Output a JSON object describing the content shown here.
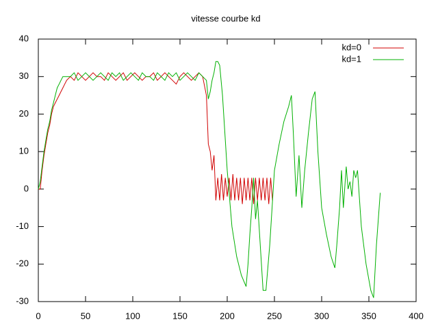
{
  "chart_data": {
    "type": "line",
    "title": "vitesse courbe kd",
    "xlim": [
      0,
      400
    ],
    "xticks": [
      0,
      50,
      100,
      150,
      200,
      250,
      300,
      350,
      400
    ],
    "ylim": [
      -30,
      40
    ],
    "yticks": [
      -30,
      -20,
      -10,
      0,
      10,
      20,
      30,
      40
    ],
    "grid": false,
    "legend": "top-right",
    "series": [
      {
        "name": "kd=0",
        "color": "#d00000",
        "x": [
          0,
          2,
          4,
          6,
          8,
          10,
          12,
          14,
          16,
          18,
          20,
          22,
          24,
          26,
          28,
          30,
          34,
          38,
          42,
          46,
          50,
          54,
          58,
          62,
          66,
          70,
          74,
          78,
          82,
          86,
          90,
          94,
          98,
          102,
          106,
          110,
          114,
          118,
          122,
          126,
          130,
          134,
          138,
          142,
          146,
          150,
          154,
          158,
          162,
          166,
          170,
          174,
          178,
          180,
          182,
          184,
          186,
          188,
          190,
          192,
          194,
          196,
          198,
          200,
          202,
          204,
          206,
          208,
          210,
          212,
          214,
          216,
          218,
          220,
          222,
          224,
          226,
          228,
          230,
          232,
          234,
          236,
          238,
          240,
          242,
          244,
          246,
          248
        ],
        "values": [
          0,
          0,
          5,
          9,
          12,
          15,
          17,
          20,
          22,
          23,
          24,
          25,
          26,
          27,
          28,
          29,
          30,
          29,
          31,
          30,
          29,
          30,
          31,
          30,
          30,
          29,
          31,
          30,
          29,
          30,
          31,
          29,
          30,
          31,
          30,
          29,
          30,
          30,
          31,
          29,
          30,
          31,
          30,
          29,
          28,
          30,
          31,
          30,
          29,
          30,
          31,
          30,
          25,
          12,
          10,
          5,
          9,
          -3,
          3,
          -3,
          4,
          -3,
          3,
          -2,
          3,
          -3,
          4,
          -3,
          3,
          -3,
          3,
          -4,
          3,
          -3,
          3,
          -3,
          3,
          -4,
          3,
          -3,
          3,
          -3,
          3,
          -3,
          3,
          -4,
          3,
          -3
        ]
      },
      {
        "name": "kd=1",
        "color": "#00b000",
        "x": [
          0,
          2,
          4,
          6,
          8,
          10,
          12,
          14,
          16,
          18,
          20,
          22,
          24,
          26,
          28,
          30,
          34,
          38,
          42,
          46,
          50,
          54,
          58,
          62,
          66,
          70,
          74,
          78,
          82,
          86,
          90,
          94,
          98,
          102,
          106,
          110,
          114,
          118,
          122,
          126,
          130,
          134,
          138,
          142,
          146,
          150,
          154,
          158,
          162,
          166,
          170,
          174,
          178,
          180,
          182,
          184,
          186,
          188,
          190,
          192,
          195,
          200,
          205,
          210,
          215,
          220,
          222,
          224,
          226,
          228,
          230,
          232,
          235,
          238,
          241,
          245,
          250,
          255,
          260,
          265,
          268,
          270,
          273,
          276,
          279,
          282,
          286,
          290,
          293,
          296,
          300,
          305,
          310,
          314,
          316,
          319,
          321,
          323,
          326,
          328,
          330,
          332,
          334,
          336,
          338,
          342,
          347,
          352,
          355,
          358,
          362
        ],
        "values": [
          0,
          2,
          6,
          10,
          13,
          16,
          18,
          21,
          23,
          25,
          27,
          28,
          29,
          30,
          30,
          30,
          30,
          31,
          29,
          30,
          31,
          30,
          29,
          30,
          31,
          30,
          29,
          31,
          30,
          31,
          29,
          30,
          31,
          30,
          29,
          31,
          30,
          30,
          29,
          31,
          30,
          29,
          31,
          30,
          31,
          29,
          30,
          31,
          30,
          29,
          31,
          30,
          29,
          24,
          26,
          29,
          31,
          34,
          34,
          33,
          25,
          5,
          -10,
          -18,
          -23,
          -26,
          -20,
          -12,
          -5,
          3,
          -8,
          -3,
          -15,
          -27,
          -27,
          -15,
          5,
          12,
          18,
          22,
          25,
          15,
          -2,
          9,
          -5,
          5,
          15,
          24,
          26,
          10,
          -5,
          -12,
          -18,
          -21,
          -15,
          -5,
          5,
          -5,
          6,
          0,
          2,
          -2,
          5,
          3,
          5,
          -10,
          -20,
          -27,
          -29,
          -15,
          -1
        ]
      }
    ]
  }
}
